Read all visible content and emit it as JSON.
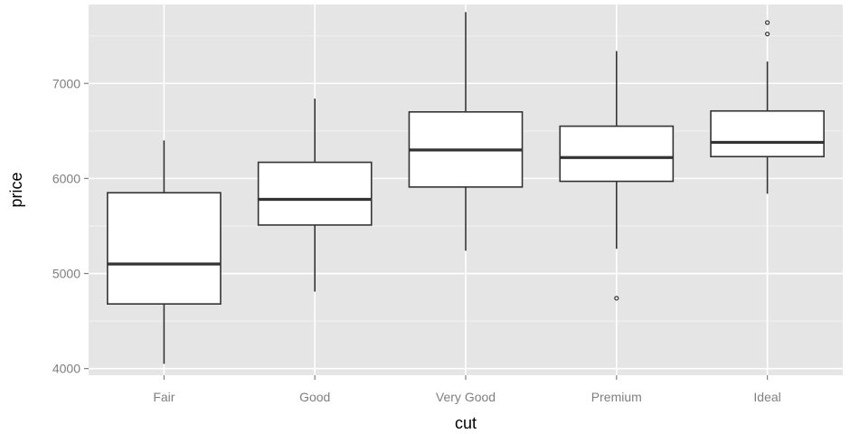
{
  "chart_data": {
    "type": "boxplot",
    "xlabel": "cut",
    "ylabel": "price",
    "ylim": [
      3930,
      7830
    ],
    "yticks": [
      4000,
      5000,
      6000,
      7000
    ],
    "categories": [
      "Fair",
      "Good",
      "Very Good",
      "Premium",
      "Ideal"
    ],
    "boxes": [
      {
        "category": "Fair",
        "whisker_low": 4050,
        "q1": 4680,
        "median": 5100,
        "q3": 5850,
        "whisker_high": 6400,
        "outliers": []
      },
      {
        "category": "Good",
        "whisker_low": 4810,
        "q1": 5510,
        "median": 5780,
        "q3": 6170,
        "whisker_high": 6840,
        "outliers": []
      },
      {
        "category": "Very Good",
        "whisker_low": 5240,
        "q1": 5910,
        "median": 6300,
        "q3": 6700,
        "whisker_high": 7750,
        "outliers": []
      },
      {
        "category": "Premium",
        "whisker_low": 5260,
        "q1": 5970,
        "median": 6220,
        "q3": 6550,
        "whisker_high": 7340,
        "outliers": [
          4740
        ]
      },
      {
        "category": "Ideal",
        "whisker_low": 5840,
        "q1": 6230,
        "median": 6380,
        "q3": 6710,
        "whisker_high": 7230,
        "outliers": [
          7520,
          7640
        ]
      }
    ],
    "grid": true,
    "colors": {
      "panel_background": "#e5e5e5",
      "grid_major": "#ffffff",
      "box_fill": "#ffffff",
      "box_stroke": "#333333",
      "tick_label": "#7f7f7f",
      "axis_title": "#000000"
    }
  }
}
